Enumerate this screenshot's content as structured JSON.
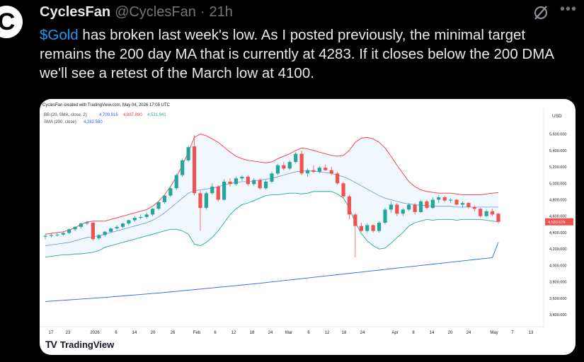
{
  "tweet": {
    "avatar_letter": "C",
    "display_name": "CyclesFan",
    "handle": "@CyclesFan",
    "separator": "·",
    "time": "21h",
    "cashtag": "$Gold",
    "text_rest": " has broken last week's low. As I posted previously, the minimal target remains the 200 day MA that is currently at 4283. If it closes below the 200 DMA we'll see a retest of the March low at 4100.",
    "icons": {
      "grok": "grok-slash-icon",
      "more": "more-dots-icon"
    }
  },
  "chart_card": {
    "watermark": "CyclesFan created with TradingView.com, May 04, 2026 17:05 UTC",
    "bb_legend": {
      "label": "BB (20, SMA, close, 2)",
      "basis": "4,709.916",
      "upper": "4,887.890",
      "lower": "4,531.941"
    },
    "sma_legend": {
      "label": "SMA (200, close)",
      "value": "4,282.580"
    },
    "currency": "USD",
    "last_price_label": "4,530.679",
    "logo_text": "TradingView",
    "colors": {
      "up": "#26a69a",
      "down": "#ef5350",
      "bb_upper": "#f23645",
      "bb_lower": "#22ab94",
      "bb_basis": "#2962ff",
      "sma": "#2962ff",
      "bb_fill": "#e3f2fd"
    }
  },
  "chart_data": {
    "type": "candlestick",
    "x_ticks": [
      "17",
      "23",
      "2026",
      "6",
      "14",
      "20",
      "26",
      "Feb",
      "6",
      "12",
      "18",
      "24",
      "Mar",
      "6",
      "12",
      "18",
      "24",
      "Apr",
      "8",
      "14",
      "20",
      "24",
      "May",
      "7",
      "13"
    ],
    "y_ticks": [
      "5,600.000",
      "5,400.000",
      "5,200.000",
      "5,000.000",
      "4,800.000",
      "4,600.000",
      "4,400.000",
      "4,200.000",
      "4,000.000",
      "3,800.000",
      "3,600.000",
      "3,400.000"
    ],
    "y_range": [
      3340,
      5700
    ],
    "candles": [
      {
        "o": 4350,
        "h": 4380,
        "l": 4320,
        "c": 4360
      },
      {
        "o": 4360,
        "h": 4390,
        "l": 4340,
        "c": 4370
      },
      {
        "o": 4370,
        "h": 4400,
        "l": 4350,
        "c": 4375
      },
      {
        "o": 4375,
        "h": 4410,
        "l": 4360,
        "c": 4395
      },
      {
        "o": 4395,
        "h": 4450,
        "l": 4380,
        "c": 4440
      },
      {
        "o": 4440,
        "h": 4480,
        "l": 4420,
        "c": 4470
      },
      {
        "o": 4470,
        "h": 4520,
        "l": 4450,
        "c": 4510
      },
      {
        "o": 4510,
        "h": 4540,
        "l": 4490,
        "c": 4525
      },
      {
        "o": 4520,
        "h": 4530,
        "l": 4300,
        "c": 4320
      },
      {
        "o": 4330,
        "h": 4380,
        "l": 4310,
        "c": 4370
      },
      {
        "o": 4370,
        "h": 4420,
        "l": 4350,
        "c": 4410
      },
      {
        "o": 4410,
        "h": 4460,
        "l": 4400,
        "c": 4450
      },
      {
        "o": 4450,
        "h": 4490,
        "l": 4430,
        "c": 4470
      },
      {
        "o": 4470,
        "h": 4520,
        "l": 4450,
        "c": 4510
      },
      {
        "o": 4510,
        "h": 4560,
        "l": 4490,
        "c": 4550
      },
      {
        "o": 4550,
        "h": 4600,
        "l": 4530,
        "c": 4580
      },
      {
        "o": 4580,
        "h": 4620,
        "l": 4560,
        "c": 4590
      },
      {
        "o": 4590,
        "h": 4640,
        "l": 4570,
        "c": 4620
      },
      {
        "o": 4620,
        "h": 4700,
        "l": 4600,
        "c": 4690
      },
      {
        "o": 4690,
        "h": 4780,
        "l": 4670,
        "c": 4770
      },
      {
        "o": 4770,
        "h": 4860,
        "l": 4750,
        "c": 4850
      },
      {
        "o": 4850,
        "h": 4960,
        "l": 4830,
        "c": 4940
      },
      {
        "o": 4940,
        "h": 5120,
        "l": 4920,
        "c": 5100
      },
      {
        "o": 5100,
        "h": 5300,
        "l": 5080,
        "c": 5280
      },
      {
        "o": 5280,
        "h": 5460,
        "l": 5260,
        "c": 5440
      },
      {
        "o": 5450,
        "h": 5590,
        "l": 4850,
        "c": 4880
      },
      {
        "o": 4880,
        "h": 4920,
        "l": 4420,
        "c": 4700
      },
      {
        "o": 4700,
        "h": 4900,
        "l": 4680,
        "c": 4880
      },
      {
        "o": 4880,
        "h": 5000,
        "l": 4860,
        "c": 4960
      },
      {
        "o": 4960,
        "h": 4980,
        "l": 4780,
        "c": 4800
      },
      {
        "o": 4800,
        "h": 5050,
        "l": 4790,
        "c": 5020
      },
      {
        "o": 5020,
        "h": 5060,
        "l": 4960,
        "c": 4990
      },
      {
        "o": 4990,
        "h": 5080,
        "l": 4970,
        "c": 5060
      },
      {
        "o": 5060,
        "h": 5100,
        "l": 5030,
        "c": 5080
      },
      {
        "o": 5080,
        "h": 5100,
        "l": 4970,
        "c": 4990
      },
      {
        "o": 4990,
        "h": 5060,
        "l": 4970,
        "c": 5040
      },
      {
        "o": 5040,
        "h": 5060,
        "l": 4920,
        "c": 4940
      },
      {
        "o": 4940,
        "h": 5040,
        "l": 4920,
        "c": 5020
      },
      {
        "o": 5020,
        "h": 5140,
        "l": 5000,
        "c": 5120
      },
      {
        "o": 5120,
        "h": 5240,
        "l": 5100,
        "c": 5220
      },
      {
        "o": 5220,
        "h": 5260,
        "l": 5160,
        "c": 5180
      },
      {
        "o": 5180,
        "h": 5280,
        "l": 5160,
        "c": 5260
      },
      {
        "o": 5260,
        "h": 5380,
        "l": 5240,
        "c": 5360
      },
      {
        "o": 5360,
        "h": 5400,
        "l": 5100,
        "c": 5120
      },
      {
        "o": 5120,
        "h": 5180,
        "l": 5080,
        "c": 5160
      },
      {
        "o": 5160,
        "h": 5220,
        "l": 5120,
        "c": 5140
      },
      {
        "o": 5140,
        "h": 5210,
        "l": 5120,
        "c": 5190
      },
      {
        "o": 5190,
        "h": 5230,
        "l": 5150,
        "c": 5160
      },
      {
        "o": 5160,
        "h": 5200,
        "l": 5100,
        "c": 5120
      },
      {
        "o": 5120,
        "h": 5140,
        "l": 4980,
        "c": 5000
      },
      {
        "o": 5000,
        "h": 5020,
        "l": 4820,
        "c": 4840
      },
      {
        "o": 4840,
        "h": 4860,
        "l": 4560,
        "c": 4620
      },
      {
        "o": 4620,
        "h": 4640,
        "l": 4100,
        "c": 4480
      },
      {
        "o": 4480,
        "h": 4520,
        "l": 4410,
        "c": 4420
      },
      {
        "o": 4420,
        "h": 4510,
        "l": 4400,
        "c": 4490
      },
      {
        "o": 4490,
        "h": 4500,
        "l": 4400,
        "c": 4420
      },
      {
        "o": 4420,
        "h": 4540,
        "l": 4400,
        "c": 4520
      },
      {
        "o": 4520,
        "h": 4700,
        "l": 4500,
        "c": 4680
      },
      {
        "o": 4680,
        "h": 4780,
        "l": 4640,
        "c": 4740
      },
      {
        "o": 4740,
        "h": 4760,
        "l": 4600,
        "c": 4630
      },
      {
        "o": 4630,
        "h": 4700,
        "l": 4600,
        "c": 4680
      },
      {
        "o": 4680,
        "h": 4760,
        "l": 4660,
        "c": 4740
      },
      {
        "o": 4740,
        "h": 4760,
        "l": 4620,
        "c": 4650
      },
      {
        "o": 4650,
        "h": 4800,
        "l": 4640,
        "c": 4780
      },
      {
        "o": 4780,
        "h": 4800,
        "l": 4680,
        "c": 4700
      },
      {
        "o": 4700,
        "h": 4830,
        "l": 4690,
        "c": 4800
      },
      {
        "o": 4800,
        "h": 4860,
        "l": 4760,
        "c": 4830
      },
      {
        "o": 4830,
        "h": 4850,
        "l": 4770,
        "c": 4790
      },
      {
        "o": 4790,
        "h": 4820,
        "l": 4760,
        "c": 4800
      },
      {
        "o": 4800,
        "h": 4810,
        "l": 4730,
        "c": 4740
      },
      {
        "o": 4740,
        "h": 4780,
        "l": 4700,
        "c": 4760
      },
      {
        "o": 4760,
        "h": 4770,
        "l": 4690,
        "c": 4710
      },
      {
        "o": 4710,
        "h": 4730,
        "l": 4660,
        "c": 4690
      },
      {
        "o": 4690,
        "h": 4700,
        "l": 4580,
        "c": 4600
      },
      {
        "o": 4600,
        "h": 4680,
        "l": 4590,
        "c": 4660
      },
      {
        "o": 4660,
        "h": 4690,
        "l": 4600,
        "c": 4620
      },
      {
        "o": 4630,
        "h": 4640,
        "l": 4510,
        "c": 4531
      }
    ],
    "bb_upper": [
      4380,
      4390,
      4400,
      4410,
      4430,
      4460,
      4500,
      4530,
      4540,
      4540,
      4540,
      4560,
      4580,
      4600,
      4620,
      4640,
      4660,
      4680,
      4720,
      4780,
      4860,
      4960,
      5080,
      5220,
      5380,
      5560,
      5600,
      5580,
      5540,
      5500,
      5440,
      5380,
      5330,
      5300,
      5280,
      5270,
      5260,
      5250,
      5260,
      5300,
      5330,
      5360,
      5400,
      5430,
      5420,
      5400,
      5380,
      5360,
      5340,
      5330,
      5340,
      5400,
      5500,
      5550,
      5560,
      5540,
      5500,
      5430,
      5330,
      5220,
      5120,
      5020,
      4960,
      4920,
      4900,
      4890,
      4880,
      4880,
      4880,
      4870,
      4860,
      4860,
      4860,
      4860,
      4870,
      4880,
      4888
    ],
    "bb_basis": [
      4240,
      4250,
      4260,
      4270,
      4280,
      4300,
      4320,
      4340,
      4350,
      4360,
      4380,
      4400,
      4420,
      4440,
      4460,
      4480,
      4500,
      4520,
      4550,
      4590,
      4640,
      4700,
      4760,
      4820,
      4880,
      4910,
      4920,
      4930,
      4940,
      4960,
      4980,
      5000,
      5010,
      5020,
      5020,
      5030,
      5040,
      5050,
      5060,
      5080,
      5100,
      5120,
      5140,
      5150,
      5150,
      5150,
      5140,
      5130,
      5120,
      5100,
      5080,
      5050,
      5010,
      4970,
      4930,
      4890,
      4850,
      4820,
      4800,
      4780,
      4760,
      4750,
      4740,
      4730,
      4730,
      4720,
      4720,
      4720,
      4720,
      4710,
      4710,
      4710,
      4710,
      4710,
      4710,
      4710,
      4710
    ],
    "bb_lower": [
      4100,
      4110,
      4120,
      4130,
      4130,
      4140,
      4140,
      4150,
      4160,
      4180,
      4220,
      4240,
      4260,
      4280,
      4300,
      4320,
      4340,
      4360,
      4380,
      4400,
      4420,
      4440,
      4440,
      4420,
      4380,
      4260,
      4240,
      4280,
      4340,
      4420,
      4520,
      4620,
      4690,
      4740,
      4760,
      4790,
      4820,
      4850,
      4860,
      4860,
      4870,
      4880,
      4880,
      4870,
      4880,
      4900,
      4900,
      4900,
      4900,
      4870,
      4820,
      4700,
      4520,
      4390,
      4300,
      4240,
      4200,
      4210,
      4270,
      4340,
      4400,
      4480,
      4520,
      4540,
      4560,
      4550,
      4560,
      4560,
      4560,
      4550,
      4560,
      4560,
      4560,
      4560,
      4550,
      4540,
      4532
    ],
    "sma200": [
      3560,
      3565,
      3570,
      3575,
      3580,
      3585,
      3590,
      3595,
      3600,
      3605,
      3610,
      3616,
      3622,
      3628,
      3634,
      3640,
      3646,
      3652,
      3658,
      3664,
      3670,
      3677,
      3684,
      3691,
      3698,
      3705,
      3712,
      3719,
      3726,
      3733,
      3740,
      3747,
      3754,
      3761,
      3768,
      3775,
      3783,
      3791,
      3799,
      3807,
      3815,
      3823,
      3831,
      3839,
      3847,
      3855,
      3863,
      3871,
      3879,
      3887,
      3895,
      3903,
      3911,
      3919,
      3927,
      3935,
      3943,
      3951,
      3959,
      3967,
      3975,
      3983,
      3991,
      3999,
      4007,
      4015,
      4023,
      4031,
      4039,
      4047,
      4055,
      4063,
      4071,
      4079,
      4087,
      4095,
      4283
    ]
  }
}
